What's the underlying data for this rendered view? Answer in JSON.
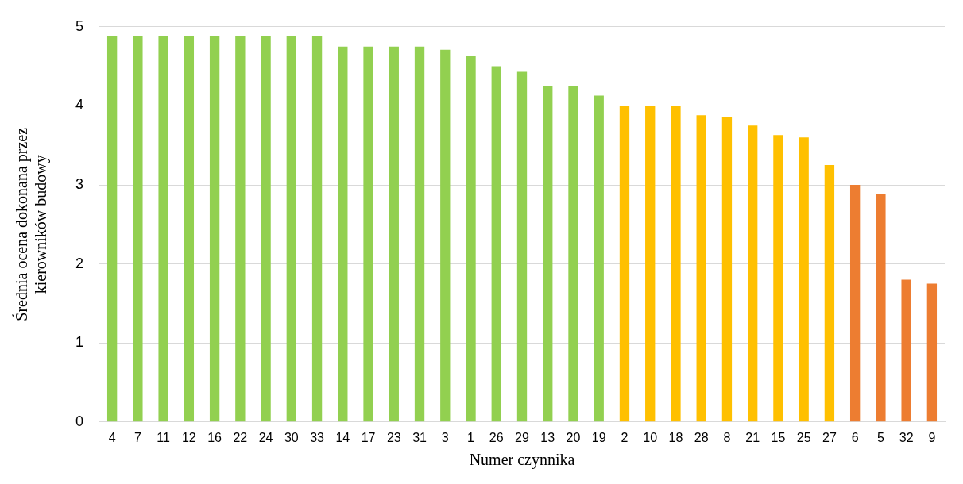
{
  "chart_data": {
    "type": "bar",
    "xlabel": "Numer czynnika",
    "ylabel": "Średnia ocena dokonana przez kierowników budowy",
    "categories": [
      "4",
      "7",
      "11",
      "12",
      "16",
      "22",
      "24",
      "30",
      "33",
      "14",
      "17",
      "23",
      "31",
      "3",
      "1",
      "26",
      "29",
      "13",
      "20",
      "19",
      "2",
      "10",
      "18",
      "28",
      "8",
      "21",
      "15",
      "25",
      "27",
      "6",
      "5",
      "32",
      "9"
    ],
    "values": [
      4.88,
      4.88,
      4.88,
      4.88,
      4.88,
      4.88,
      4.88,
      4.88,
      4.88,
      4.75,
      4.75,
      4.75,
      4.75,
      4.71,
      4.63,
      4.5,
      4.43,
      4.25,
      4.25,
      4.13,
      4,
      4,
      4,
      3.88,
      3.86,
      3.75,
      3.63,
      3.6,
      3.25,
      3,
      2.88,
      1.8,
      1.75
    ],
    "colors": [
      "#92d050",
      "#92d050",
      "#92d050",
      "#92d050",
      "#92d050",
      "#92d050",
      "#92d050",
      "#92d050",
      "#92d050",
      "#92d050",
      "#92d050",
      "#92d050",
      "#92d050",
      "#92d050",
      "#92d050",
      "#92d050",
      "#92d050",
      "#92d050",
      "#92d050",
      "#92d050",
      "#ffc000",
      "#ffc000",
      "#ffc000",
      "#ffc000",
      "#ffc000",
      "#ffc000",
      "#ffc000",
      "#ffc000",
      "#ffc000",
      "#ed7d31",
      "#ed7d31",
      "#ed7d31",
      "#ed7d31"
    ],
    "ylim": [
      0,
      5
    ],
    "yticks": [
      0,
      1,
      2,
      3,
      4,
      5
    ],
    "grid": "y",
    "legend": false
  }
}
